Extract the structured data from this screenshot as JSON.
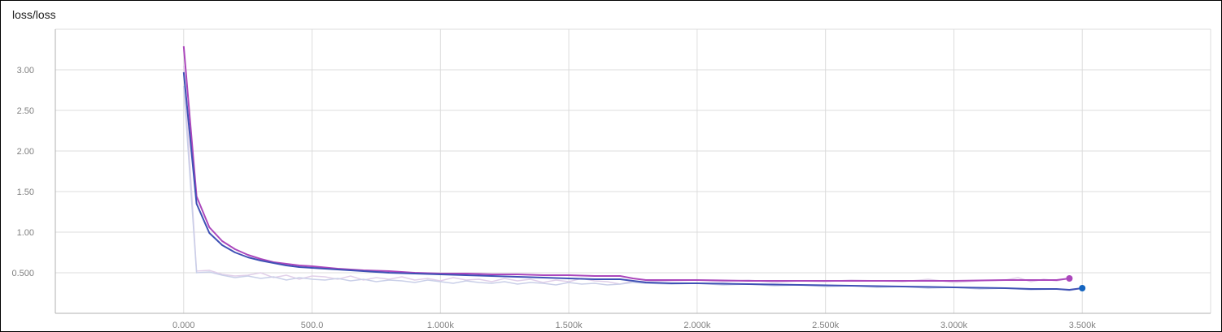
{
  "panel": {
    "title": "loss/loss"
  },
  "chart_data": {
    "type": "line",
    "title": "loss/loss",
    "xlabel": "",
    "ylabel": "",
    "xlim": [
      -500,
      4000
    ],
    "ylim": [
      0,
      3.5
    ],
    "x_ticks": [
      0,
      500,
      1000,
      1500,
      2000,
      2500,
      3000,
      3500
    ],
    "x_tick_labels": [
      "0.000",
      "500.0",
      "1.000k",
      "1.500k",
      "2.000k",
      "2.500k",
      "3.000k",
      "3.500k"
    ],
    "y_ticks": [
      0.5,
      1.0,
      1.5,
      2.0,
      2.5,
      3.0
    ],
    "y_tick_labels": [
      "0.500",
      "1.00",
      "1.50",
      "2.00",
      "2.50",
      "3.00"
    ],
    "x_grid": [
      -500,
      0,
      500,
      1000,
      1500,
      2000,
      2500,
      3000,
      3500,
      4000
    ],
    "y_grid": [
      0,
      0.5,
      1.0,
      1.5,
      2.0,
      2.5,
      3.0,
      3.5
    ],
    "grid": true,
    "series": [
      {
        "color": "#ab47bc",
        "raw_color": "#e1cfe9",
        "end_marker": true,
        "smoothed": [
          [
            0,
            3.29
          ],
          [
            50,
            1.44
          ],
          [
            100,
            1.06
          ],
          [
            150,
            0.89
          ],
          [
            200,
            0.79
          ],
          [
            250,
            0.72
          ],
          [
            300,
            0.67
          ],
          [
            350,
            0.63
          ],
          [
            400,
            0.61
          ],
          [
            450,
            0.59
          ],
          [
            500,
            0.58
          ],
          [
            600,
            0.55
          ],
          [
            700,
            0.53
          ],
          [
            800,
            0.52
          ],
          [
            900,
            0.5
          ],
          [
            1000,
            0.49
          ],
          [
            1100,
            0.49
          ],
          [
            1200,
            0.48
          ],
          [
            1300,
            0.48
          ],
          [
            1400,
            0.47
          ],
          [
            1500,
            0.47
          ],
          [
            1600,
            0.46
          ],
          [
            1700,
            0.46
          ],
          [
            1750,
            0.43
          ],
          [
            1800,
            0.41
          ],
          [
            1900,
            0.41
          ],
          [
            2000,
            0.41
          ],
          [
            2200,
            0.4
          ],
          [
            2400,
            0.4
          ],
          [
            2600,
            0.4
          ],
          [
            2800,
            0.4
          ],
          [
            3000,
            0.4
          ],
          [
            3200,
            0.41
          ],
          [
            3300,
            0.41
          ],
          [
            3400,
            0.41
          ],
          [
            3450,
            0.43
          ]
        ],
        "raw": [
          [
            0,
            3.05
          ],
          [
            50,
            0.52
          ],
          [
            100,
            0.53
          ],
          [
            150,
            0.48
          ],
          [
            200,
            0.46
          ],
          [
            250,
            0.47
          ],
          [
            300,
            0.5
          ],
          [
            350,
            0.44
          ],
          [
            400,
            0.47
          ],
          [
            450,
            0.42
          ],
          [
            500,
            0.46
          ],
          [
            550,
            0.45
          ],
          [
            600,
            0.42
          ],
          [
            650,
            0.46
          ],
          [
            700,
            0.41
          ],
          [
            750,
            0.44
          ],
          [
            800,
            0.42
          ],
          [
            850,
            0.45
          ],
          [
            900,
            0.41
          ],
          [
            950,
            0.43
          ],
          [
            1000,
            0.4
          ],
          [
            1050,
            0.44
          ],
          [
            1100,
            0.41
          ],
          [
            1150,
            0.42
          ],
          [
            1200,
            0.39
          ],
          [
            1250,
            0.43
          ],
          [
            1300,
            0.4
          ],
          [
            1350,
            0.42
          ],
          [
            1400,
            0.38
          ],
          [
            1450,
            0.41
          ],
          [
            1500,
            0.39
          ],
          [
            1550,
            0.43
          ],
          [
            1600,
            0.4
          ],
          [
            1650,
            0.39
          ],
          [
            1700,
            0.36
          ],
          [
            1750,
            0.4
          ],
          [
            1800,
            0.39
          ],
          [
            1900,
            0.4
          ],
          [
            2000,
            0.41
          ],
          [
            2100,
            0.39
          ],
          [
            2200,
            0.41
          ],
          [
            2300,
            0.38
          ],
          [
            2400,
            0.4
          ],
          [
            2500,
            0.39
          ],
          [
            2600,
            0.41
          ],
          [
            2700,
            0.4
          ],
          [
            2800,
            0.39
          ],
          [
            2900,
            0.42
          ],
          [
            3000,
            0.38
          ],
          [
            3100,
            0.4
          ],
          [
            3200,
            0.41
          ],
          [
            3250,
            0.44
          ],
          [
            3300,
            0.39
          ],
          [
            3350,
            0.42
          ],
          [
            3400,
            0.4
          ],
          [
            3450,
            0.43
          ]
        ]
      },
      {
        "color": "#3f51b5",
        "raw_color": "#c9cfe8",
        "end_marker": true,
        "marker_color": "#1565c0",
        "smoothed": [
          [
            0,
            2.97
          ],
          [
            50,
            1.35
          ],
          [
            100,
            0.99
          ],
          [
            150,
            0.84
          ],
          [
            200,
            0.75
          ],
          [
            250,
            0.69
          ],
          [
            300,
            0.65
          ],
          [
            350,
            0.62
          ],
          [
            400,
            0.59
          ],
          [
            450,
            0.57
          ],
          [
            500,
            0.56
          ],
          [
            600,
            0.54
          ],
          [
            700,
            0.52
          ],
          [
            800,
            0.5
          ],
          [
            900,
            0.49
          ],
          [
            1000,
            0.48
          ],
          [
            1100,
            0.47
          ],
          [
            1200,
            0.46
          ],
          [
            1300,
            0.45
          ],
          [
            1400,
            0.44
          ],
          [
            1500,
            0.43
          ],
          [
            1600,
            0.42
          ],
          [
            1700,
            0.42
          ],
          [
            1750,
            0.4
          ],
          [
            1800,
            0.38
          ],
          [
            1900,
            0.37
          ],
          [
            2000,
            0.37
          ],
          [
            2200,
            0.36
          ],
          [
            2400,
            0.35
          ],
          [
            2600,
            0.34
          ],
          [
            2800,
            0.33
          ],
          [
            3000,
            0.32
          ],
          [
            3200,
            0.31
          ],
          [
            3300,
            0.3
          ],
          [
            3400,
            0.3
          ],
          [
            3450,
            0.29
          ],
          [
            3500,
            0.31
          ]
        ],
        "raw": [
          [
            0,
            2.8
          ],
          [
            50,
            0.5
          ],
          [
            100,
            0.51
          ],
          [
            150,
            0.47
          ],
          [
            200,
            0.44
          ],
          [
            250,
            0.46
          ],
          [
            300,
            0.43
          ],
          [
            350,
            0.45
          ],
          [
            400,
            0.41
          ],
          [
            450,
            0.44
          ],
          [
            500,
            0.42
          ],
          [
            550,
            0.41
          ],
          [
            600,
            0.43
          ],
          [
            650,
            0.4
          ],
          [
            700,
            0.42
          ],
          [
            750,
            0.39
          ],
          [
            800,
            0.41
          ],
          [
            850,
            0.4
          ],
          [
            900,
            0.38
          ],
          [
            950,
            0.41
          ],
          [
            1000,
            0.39
          ],
          [
            1050,
            0.37
          ],
          [
            1100,
            0.4
          ],
          [
            1150,
            0.38
          ],
          [
            1200,
            0.37
          ],
          [
            1250,
            0.39
          ],
          [
            1300,
            0.36
          ],
          [
            1350,
            0.38
          ],
          [
            1400,
            0.37
          ],
          [
            1450,
            0.35
          ],
          [
            1500,
            0.38
          ],
          [
            1550,
            0.36
          ],
          [
            1600,
            0.37
          ],
          [
            1650,
            0.35
          ],
          [
            1700,
            0.36
          ],
          [
            1750,
            0.38
          ],
          [
            1800,
            0.37
          ],
          [
            1900,
            0.36
          ],
          [
            2000,
            0.37
          ],
          [
            2100,
            0.35
          ],
          [
            2200,
            0.36
          ],
          [
            2300,
            0.34
          ],
          [
            2400,
            0.35
          ],
          [
            2500,
            0.33
          ],
          [
            2600,
            0.34
          ],
          [
            2700,
            0.32
          ],
          [
            2800,
            0.33
          ],
          [
            2900,
            0.31
          ],
          [
            3000,
            0.32
          ],
          [
            3100,
            0.3
          ],
          [
            3200,
            0.31
          ],
          [
            3300,
            0.29
          ],
          [
            3400,
            0.3
          ],
          [
            3450,
            0.28
          ],
          [
            3500,
            0.31
          ]
        ]
      }
    ]
  }
}
